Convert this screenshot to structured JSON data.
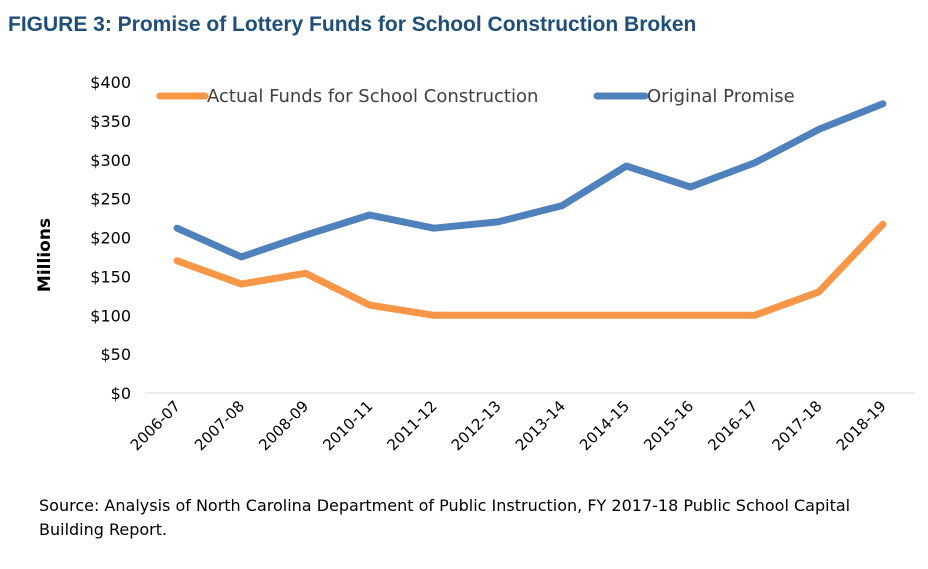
{
  "figure": {
    "title": "FIGURE 3: Promise of Lottery Funds for School Construction Broken",
    "source": "Source: Analysis of North Carolina Department of Public Instruction, FY 2017-18 Public School Capital Building Report."
  },
  "chart_data": {
    "type": "line",
    "title": "",
    "xlabel": "",
    "ylabel": "Millions",
    "categories": [
      "2006-07",
      "2007-08",
      "2008-09",
      "2010-11",
      "2011-12",
      "2012-13",
      "2013-14",
      "2014-15",
      "2015-16",
      "2016-17",
      "2017-18",
      "2018-19"
    ],
    "ylim": [
      0,
      400
    ],
    "yticks": [
      0,
      50,
      100,
      150,
      200,
      250,
      300,
      350,
      400
    ],
    "ytick_labels": [
      "$0",
      "$50",
      "$100",
      "$150",
      "$200",
      "$250",
      "$300",
      "$350",
      "$400"
    ],
    "grid": false,
    "legend": "top",
    "series": [
      {
        "name": "Actual Funds for School Construction",
        "color": "#f79646",
        "values": [
          170,
          140,
          154,
          113,
          100,
          100,
          100,
          100,
          100,
          100,
          130,
          217
        ]
      },
      {
        "name": "Original Promise",
        "color": "#4f81bd",
        "values": [
          212,
          175,
          203,
          229,
          212,
          220,
          241,
          292,
          265,
          296,
          339,
          372
        ]
      }
    ]
  }
}
